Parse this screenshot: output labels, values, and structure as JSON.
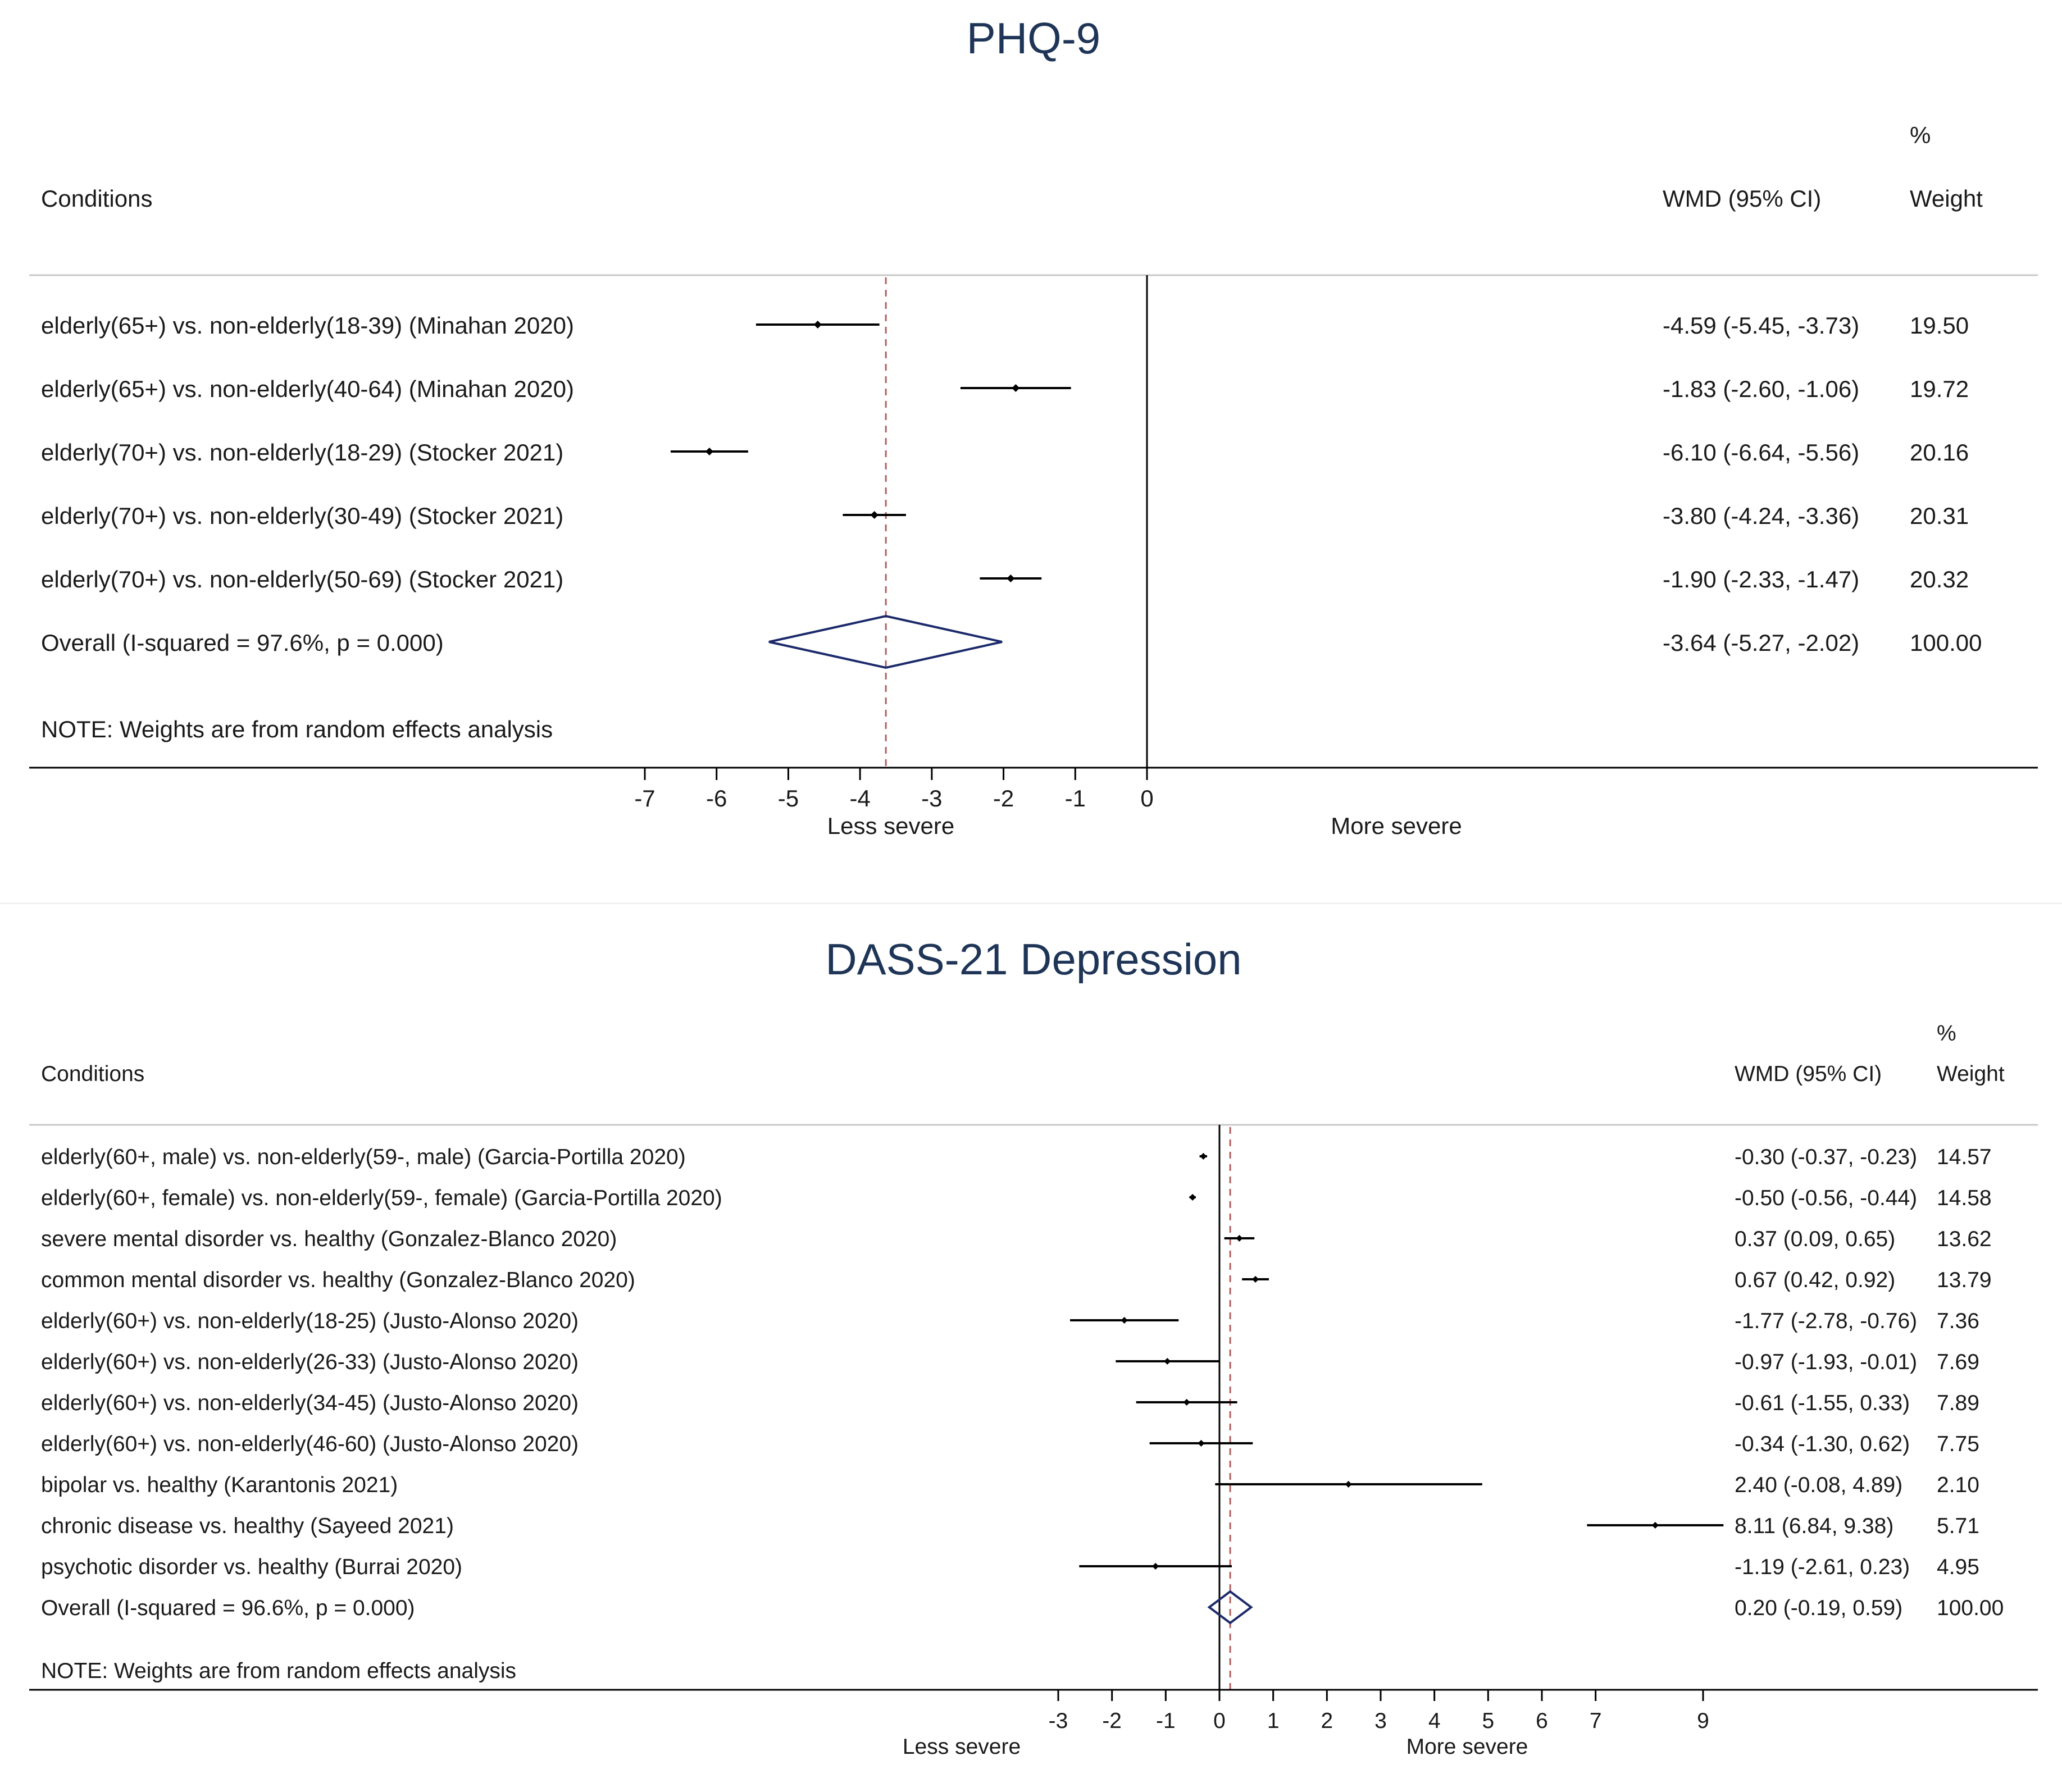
{
  "chart_data": [
    {
      "type": "forest",
      "title": "PHQ-9",
      "label_header": "Conditions",
      "effect_header": "WMD (95% CI)",
      "weight_header_top": "%",
      "weight_header": "Weight",
      "xticks": [
        "-7",
        "-6",
        "-5",
        "-4",
        "-3",
        "-2",
        "-1",
        "0"
      ],
      "xtick_values": [
        -7,
        -6,
        -5,
        -4,
        -3,
        -2,
        -1,
        0
      ],
      "xlabel_left": "Less severe",
      "xlabel_right": "More severe",
      "note": "NOTE: Weights are from random effects analysis",
      "rows": [
        {
          "label": "elderly(65+) vs. non-elderly(18-39) (Minahan 2020)",
          "est": -4.59,
          "lo": -5.45,
          "hi": -3.73,
          "ci_text": "-4.59 (-5.45, -3.73)",
          "weight": "19.50"
        },
        {
          "label": "elderly(65+) vs. non-elderly(40-64) (Minahan 2020)",
          "est": -1.83,
          "lo": -2.6,
          "hi": -1.06,
          "ci_text": "-1.83 (-2.60, -1.06)",
          "weight": "19.72"
        },
        {
          "label": "elderly(70+) vs. non-elderly(18-29) (Stocker 2021)",
          "est": -6.1,
          "lo": -6.64,
          "hi": -5.56,
          "ci_text": "-6.10 (-6.64, -5.56)",
          "weight": "20.16"
        },
        {
          "label": "elderly(70+) vs. non-elderly(30-49) (Stocker 2021)",
          "est": -3.8,
          "lo": -4.24,
          "hi": -3.36,
          "ci_text": "-3.80 (-4.24, -3.36)",
          "weight": "20.31"
        },
        {
          "label": "elderly(70+) vs. non-elderly(50-69) (Stocker 2021)",
          "est": -1.9,
          "lo": -2.33,
          "hi": -1.47,
          "ci_text": "-1.90 (-2.33, -1.47)",
          "weight": "20.32"
        }
      ],
      "overall": {
        "label": "Overall  (I-squared = 97.6%, p = 0.000)",
        "est": -3.64,
        "lo": -5.27,
        "hi": -2.02,
        "ci_text": "-3.64 (-5.27, -2.02)",
        "weight": "100.00"
      }
    },
    {
      "type": "forest",
      "title": "DASS-21 Depression",
      "label_header": "Conditions",
      "effect_header": "WMD (95% CI)",
      "weight_header_top": "%",
      "weight_header": "Weight",
      "xticks": [
        "-3",
        "-2",
        "-1",
        "0",
        "1",
        "2",
        "3",
        "4",
        "5",
        "6",
        "7",
        "9"
      ],
      "xtick_values": [
        -3,
        -2,
        -1,
        0,
        1,
        2,
        3,
        4,
        5,
        6,
        7,
        9
      ],
      "xlabel_left": "Less severe",
      "xlabel_right": "More severe",
      "note": "NOTE: Weights are from random effects analysis",
      "rows": [
        {
          "label": "elderly(60+, male) vs. non-elderly(59-, male) (Garcia-Portilla 2020)",
          "est": -0.3,
          "lo": -0.37,
          "hi": -0.23,
          "ci_text": "-0.30 (-0.37, -0.23)",
          "weight": "14.57"
        },
        {
          "label": "elderly(60+, female) vs. non-elderly(59-, female) (Garcia-Portilla 2020)",
          "est": -0.5,
          "lo": -0.56,
          "hi": -0.44,
          "ci_text": "-0.50 (-0.56, -0.44)",
          "weight": "14.58"
        },
        {
          "label": "severe mental disorder vs. healthy (Gonzalez-Blanco 2020)",
          "est": 0.37,
          "lo": 0.09,
          "hi": 0.65,
          "ci_text": "0.37 (0.09, 0.65)",
          "weight": "13.62"
        },
        {
          "label": "common mental disorder vs. healthy (Gonzalez-Blanco 2020)",
          "est": 0.67,
          "lo": 0.42,
          "hi": 0.92,
          "ci_text": "0.67 (0.42, 0.92)",
          "weight": "13.79"
        },
        {
          "label": "elderly(60+) vs. non-elderly(18-25) (Justo-Alonso 2020)",
          "est": -1.77,
          "lo": -2.78,
          "hi": -0.76,
          "ci_text": "-1.77 (-2.78, -0.76)",
          "weight": "7.36"
        },
        {
          "label": "elderly(60+) vs. non-elderly(26-33) (Justo-Alonso 2020)",
          "est": -0.97,
          "lo": -1.93,
          "hi": -0.01,
          "ci_text": "-0.97 (-1.93, -0.01)",
          "weight": "7.69"
        },
        {
          "label": "elderly(60+) vs. non-elderly(34-45) (Justo-Alonso 2020)",
          "est": -0.61,
          "lo": -1.55,
          "hi": 0.33,
          "ci_text": "-0.61 (-1.55, 0.33)",
          "weight": "7.89"
        },
        {
          "label": "elderly(60+) vs. non-elderly(46-60) (Justo-Alonso 2020)",
          "est": -0.34,
          "lo": -1.3,
          "hi": 0.62,
          "ci_text": "-0.34 (-1.30, 0.62)",
          "weight": "7.75"
        },
        {
          "label": "bipolar vs. healthy (Karantonis 2021)",
          "est": 2.4,
          "lo": -0.08,
          "hi": 4.89,
          "ci_text": "2.40 (-0.08, 4.89)",
          "weight": "2.10"
        },
        {
          "label": "chronic disease vs. healthy (Sayeed 2021)",
          "est": 8.11,
          "lo": 6.84,
          "hi": 9.38,
          "ci_text": "8.11 (6.84, 9.38)",
          "weight": "5.71"
        },
        {
          "label": "psychotic disorder vs. healthy (Burrai 2020)",
          "est": -1.19,
          "lo": -2.61,
          "hi": 0.23,
          "ci_text": "-1.19 (-2.61, 0.23)",
          "weight": "4.95"
        }
      ],
      "overall": {
        "label": "Overall  (I-squared = 96.6%, p = 0.000)",
        "est": 0.2,
        "lo": -0.19,
        "hi": 0.59,
        "ci_text": "0.20 (-0.19, 0.59)",
        "weight": "100.00"
      }
    }
  ],
  "colors": {
    "title": "#1f3557",
    "text": "#1a1a1a",
    "axis": "#000000",
    "diamond": "#1c2a6b",
    "overall_line": "#b06060"
  }
}
